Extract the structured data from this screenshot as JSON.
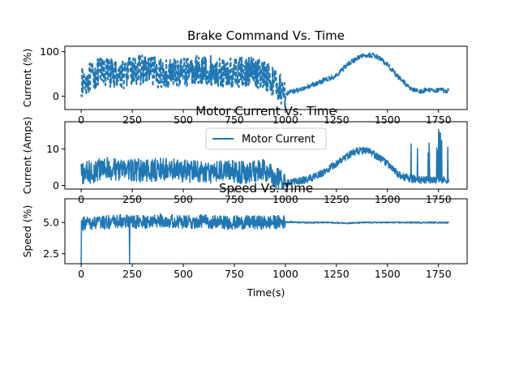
{
  "chart_data": [
    {
      "type": "line",
      "title": "Brake Command Vs. Time",
      "xlabel": "",
      "ylabel": "Current (%)",
      "xlim": [
        -80,
        1890
      ],
      "ylim": [
        -30,
        112
      ],
      "xticks": [
        0,
        250,
        500,
        750,
        1000,
        1250,
        1500,
        1750
      ],
      "yticks": [
        0,
        100
      ],
      "line_style": "dashed",
      "color": "#1f77b4",
      "series": [
        {
          "x": [
            0,
            100,
            200,
            300,
            400,
            500,
            600,
            700,
            800,
            900,
            1000,
            1050,
            1100,
            1150,
            1200,
            1250,
            1300,
            1350,
            1400,
            1450,
            1500,
            1550,
            1600,
            1650,
            1700,
            1750,
            1800
          ],
          "y": [
            30,
            55,
            50,
            60,
            50,
            55,
            60,
            50,
            55,
            50,
            5,
            12,
            20,
            28,
            38,
            45,
            70,
            85,
            92,
            90,
            70,
            45,
            22,
            10,
            14,
            14,
            12
          ]
        }
      ]
    },
    {
      "type": "line",
      "title": "Motor Current Vs. Time",
      "xlabel": "",
      "ylabel": "Current (Amps)",
      "xlim": [
        -80,
        1890
      ],
      "ylim": [
        -1,
        17.5
      ],
      "xticks": [
        0,
        250,
        500,
        750,
        1000,
        1250,
        1500,
        1750
      ],
      "yticks": [
        0,
        10
      ],
      "color": "#1f77b4",
      "legend": {
        "position": "top-center",
        "entries": [
          "Motor Current"
        ]
      },
      "series": [
        {
          "name": "Motor Current",
          "x": [
            0,
            100,
            200,
            300,
            400,
            500,
            600,
            700,
            800,
            900,
            1000,
            1050,
            1100,
            1150,
            1200,
            1250,
            1300,
            1350,
            1400,
            1450,
            1500,
            1550,
            1600,
            1650,
            1700,
            1750,
            1800
          ],
          "y": [
            3,
            4.5,
            4.5,
            4,
            4.5,
            4,
            3.5,
            4,
            3.5,
            4,
            0.5,
            1,
            1.5,
            2.5,
            4,
            6,
            8,
            9.5,
            9.5,
            8,
            6,
            3,
            2,
            1.5,
            1.5,
            1.5,
            1.5
          ]
        }
      ]
    },
    {
      "type": "line",
      "title": "Speed Vs. Time",
      "xlabel": "Time(s)",
      "ylabel": "Speed (%)",
      "xlim": [
        -80,
        1890
      ],
      "ylim": [
        1.7,
        6.9
      ],
      "xticks": [
        0,
        250,
        500,
        750,
        1000,
        1250,
        1500,
        1750
      ],
      "yticks": [
        2.5,
        5.0
      ],
      "color": "#1f77b4",
      "series": [
        {
          "x": [
            0,
            100,
            200,
            300,
            400,
            500,
            600,
            700,
            800,
            900,
            1000,
            1100,
            1200,
            1300,
            1400,
            1500,
            1600,
            1700,
            1800
          ],
          "y": [
            4.9,
            5.0,
            5.1,
            5.0,
            5.2,
            5.0,
            5.1,
            5.0,
            5.0,
            5.0,
            5.05,
            5.0,
            5.0,
            4.95,
            5.0,
            5.0,
            5.0,
            5.0,
            5.0
          ]
        }
      ]
    }
  ]
}
